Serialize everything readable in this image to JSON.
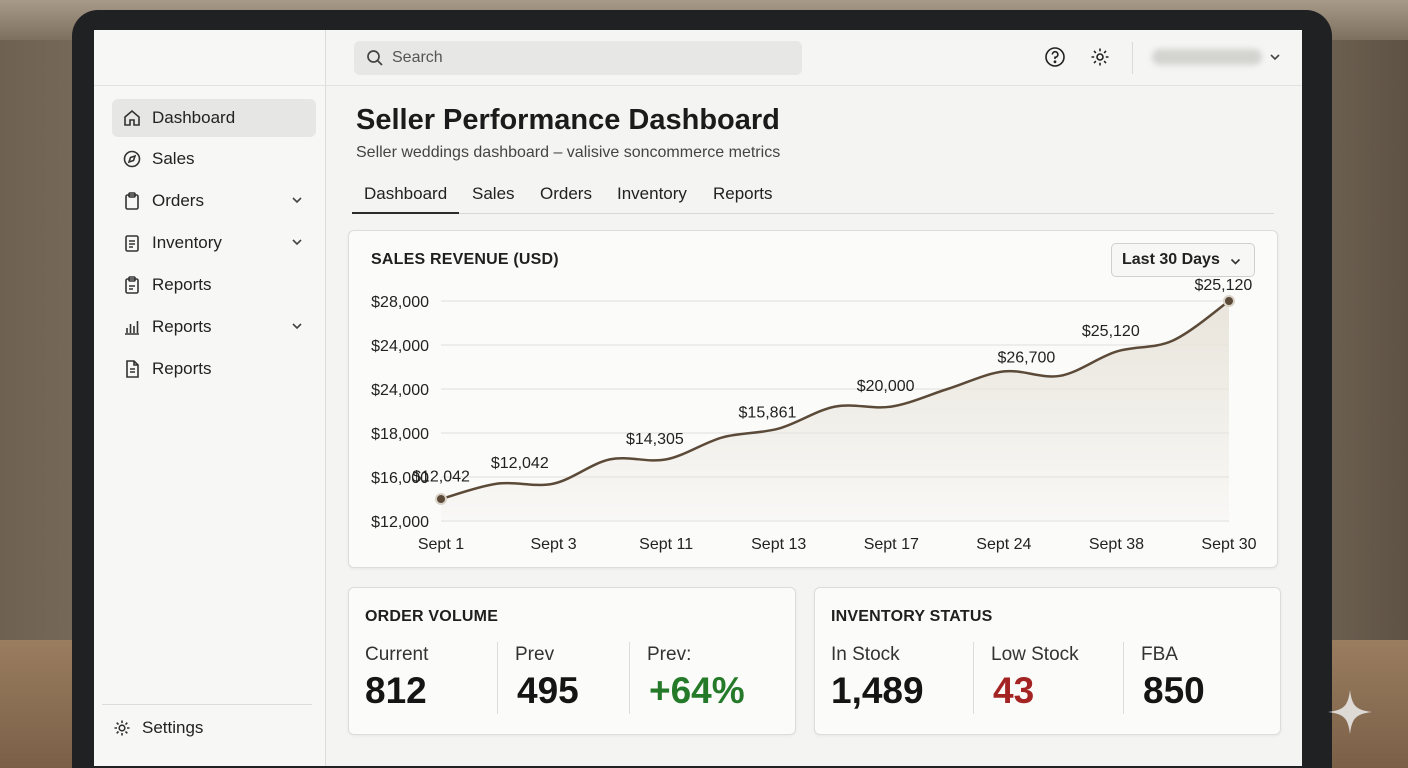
{
  "sidebar": {
    "items": [
      {
        "label": "Dashboard",
        "icon": "home-icon"
      },
      {
        "label": "Sales",
        "icon": "compass-icon"
      },
      {
        "label": "Orders",
        "icon": "clipboard-icon"
      },
      {
        "label": "Inventory",
        "icon": "list-icon"
      },
      {
        "label": "Reports",
        "icon": "clipboard-check-icon"
      },
      {
        "label": "Reports",
        "icon": "bar-chart-icon"
      },
      {
        "label": "Reports",
        "icon": "document-icon"
      }
    ],
    "settings_label": "Settings"
  },
  "header": {
    "search_placeholder": "Search",
    "help_icon": "help-icon",
    "settings_icon": "gear-icon"
  },
  "page": {
    "title": "Seller Performance Dashboard",
    "subtitle": "Seller weddings dashboard – valisive soncommerce metrics",
    "tabs": [
      "Dashboard",
      "Sales",
      "Orders",
      "Inventory",
      "Reports"
    ]
  },
  "chart_card": {
    "title": "SALES REVENUE (USD)",
    "range_label": "Last 30 Days"
  },
  "chart_data": {
    "type": "line",
    "title": "SALES REVENUE (USD)",
    "y_tick_labels": [
      "$28,000",
      "$24,000",
      "$24,000",
      "$18,000",
      "$16,000",
      "$12,000"
    ],
    "x_tick_labels": [
      "Sept 1",
      "Sept 3",
      "Sept 11",
      "Sept 13",
      "Sept 17",
      "Sept 24",
      "Sept 38",
      "Sept 30"
    ],
    "ylim_rank": [
      0,
      5
    ],
    "series": [
      {
        "name": "Revenue",
        "x_index": [
          0,
          0.5,
          1,
          1.5,
          2,
          2.5,
          3,
          3.5,
          4,
          4.5,
          5,
          5.5,
          6,
          6.5,
          7
        ],
        "y_rank": [
          0.5,
          0.85,
          0.85,
          1.4,
          1.4,
          1.9,
          2.1,
          2.6,
          2.6,
          3.0,
          3.4,
          3.3,
          3.85,
          4.1,
          5.0
        ]
      }
    ],
    "data_labels": [
      {
        "text": "$12,042",
        "x_index": 0.0,
        "y_rank": 0.9
      },
      {
        "text": "$12,042",
        "x_index": 0.7,
        "y_rank": 1.2
      },
      {
        "text": "$14,305",
        "x_index": 1.9,
        "y_rank": 1.75
      },
      {
        "text": "$15,861",
        "x_index": 2.9,
        "y_rank": 2.35
      },
      {
        "text": "$20,000",
        "x_index": 3.95,
        "y_rank": 2.95
      },
      {
        "text": "$26,700",
        "x_index": 5.2,
        "y_rank": 3.6
      },
      {
        "text": "$25,120",
        "x_index": 5.95,
        "y_rank": 4.2
      },
      {
        "text": "$25,120",
        "x_index": 6.95,
        "y_rank": 5.25
      }
    ],
    "markers": [
      {
        "x_index": 0,
        "y_rank": 0.5
      },
      {
        "x_index": 7,
        "y_rank": 5.0
      }
    ],
    "line_color": "#5c4a38",
    "fill_color": "#e9e5dc",
    "grid": true
  },
  "order_volume": {
    "title": "ORDER VOLUME",
    "metrics": [
      {
        "label": "Current",
        "value": "812"
      },
      {
        "label": "Prev",
        "value": "495"
      },
      {
        "label": "Prev:",
        "value": "+64%"
      }
    ]
  },
  "inventory_status": {
    "title": "INVENTORY STATUS",
    "metrics": [
      {
        "label": "In Stock",
        "value": "1,489"
      },
      {
        "label": "Low Stock",
        "value": "43"
      },
      {
        "label": "FBA",
        "value": "850"
      }
    ]
  },
  "colors": {
    "positive": "#257a2a",
    "negative": "#a42424",
    "accent_line": "#5c4a38"
  }
}
